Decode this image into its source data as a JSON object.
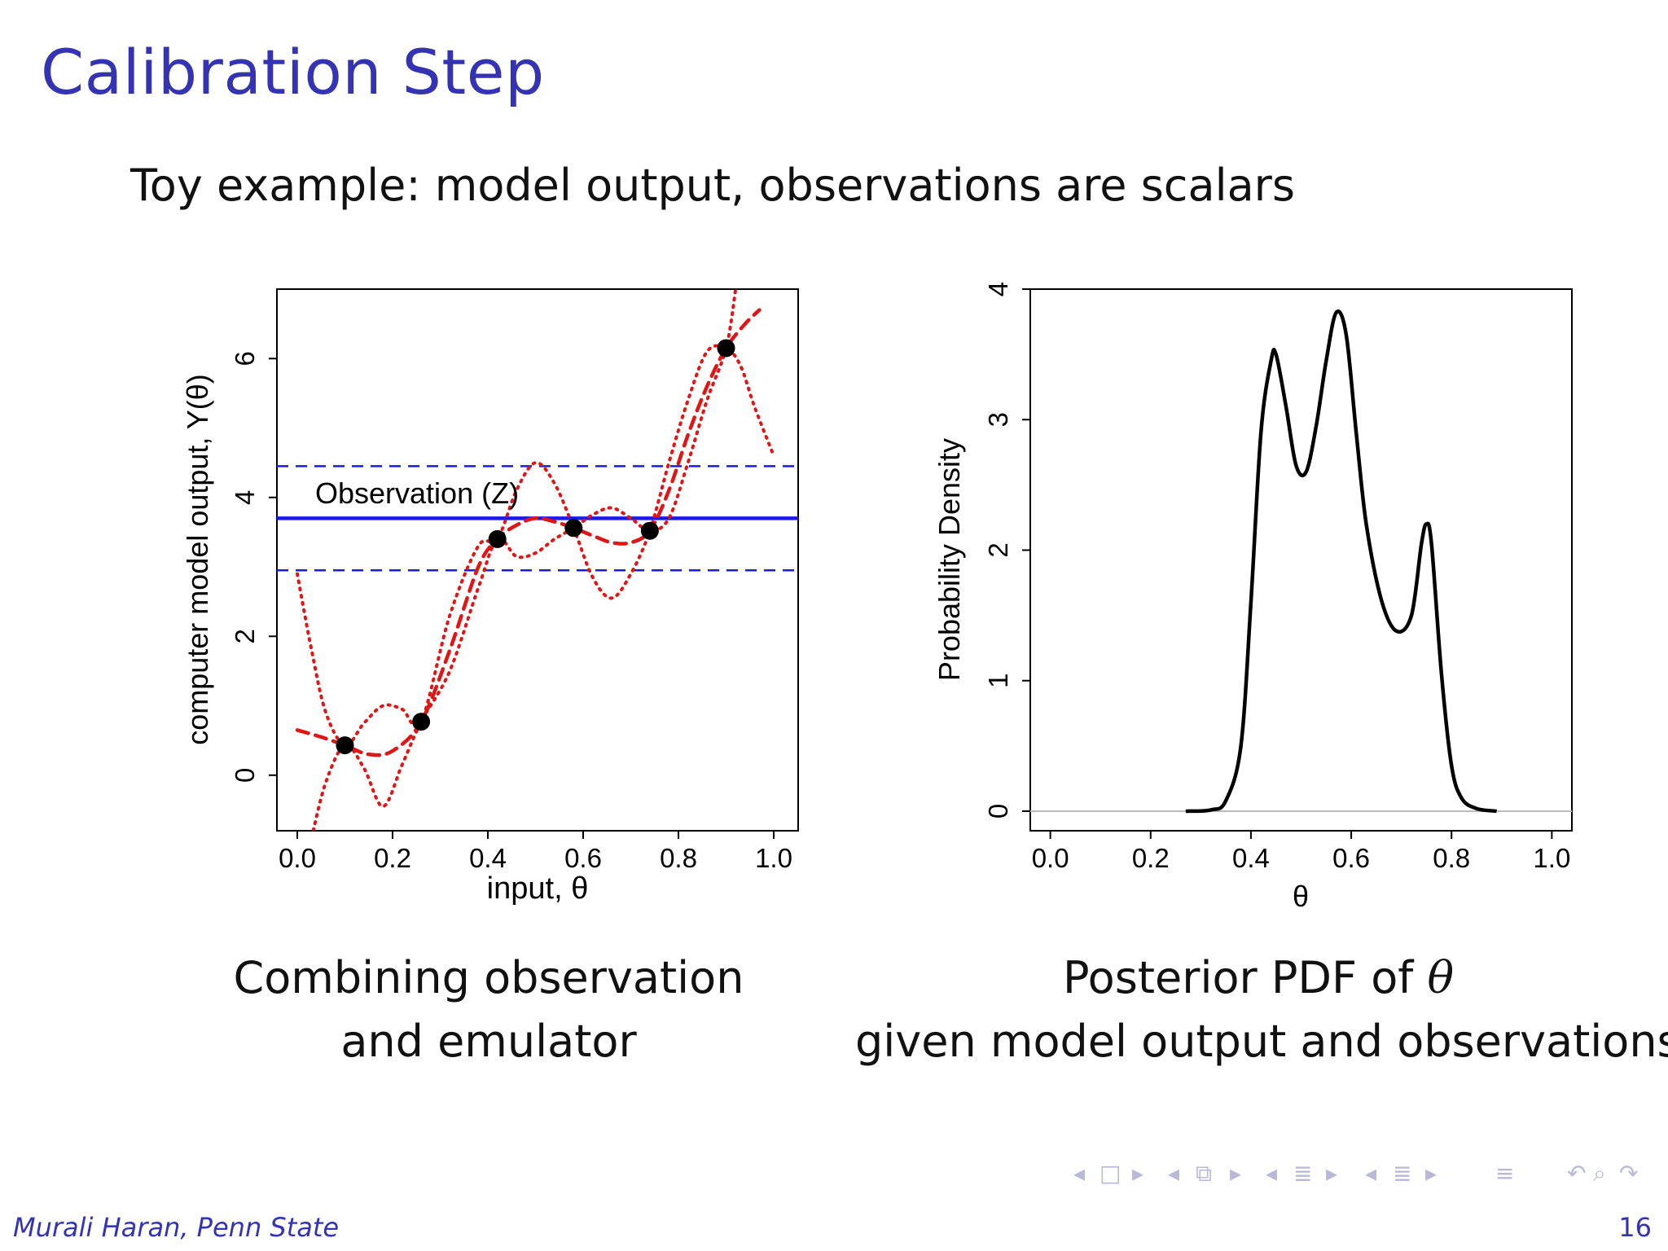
{
  "slide": {
    "title": "Calibration Step",
    "subtitle": "Toy example: model output, observations are scalars",
    "footer_author": "Murali Haran, Penn State",
    "page_number": "16"
  },
  "captions": {
    "left_line1": "Combining observation",
    "left_line2": "and emulator",
    "right_line1_prefix": "Posterior PDF of ",
    "right_line1_symbol": "θ",
    "right_line2": "given model output and observations"
  },
  "nav_icons": [
    "nav-left-arrow-icon",
    "frame-icon",
    "nav-right-arrow-icon",
    "subsection-icon",
    "section-icon",
    "align-icon",
    "search-icon",
    "undo-icon"
  ],
  "colors": {
    "title": "#3333b3",
    "emulator": "#e01515",
    "observation": "#1a1ae6",
    "density": "#000000"
  },
  "chart_data": [
    {
      "type": "line",
      "title": "",
      "xlabel": "input, θ",
      "ylabel": "computer model output,  Y(θ)",
      "xlim": [
        0,
        1
      ],
      "ylim": [
        -0.8,
        7
      ],
      "xticks": [
        "0.0",
        "0.2",
        "0.4",
        "0.6",
        "0.8",
        "1.0"
      ],
      "yticks": [
        "0",
        "2",
        "4",
        "6"
      ],
      "annotation": "Observation (Z)",
      "observation": {
        "value": 3.7,
        "lower": 2.95,
        "upper": 4.45
      },
      "design_points": {
        "x": [
          0.1,
          0.26,
          0.42,
          0.58,
          0.74,
          0.9
        ],
        "y": [
          0.43,
          0.77,
          3.4,
          3.56,
          3.52,
          6.15
        ]
      },
      "series": [
        {
          "style": "dashed-mean",
          "x": [
            0.0,
            0.05,
            0.1,
            0.15,
            0.2,
            0.26,
            0.32,
            0.38,
            0.42,
            0.46,
            0.5,
            0.54,
            0.58,
            0.62,
            0.66,
            0.7,
            0.74,
            0.78,
            0.82,
            0.86,
            0.9,
            0.94,
            0.97
          ],
          "y": [
            0.65,
            0.55,
            0.43,
            0.3,
            0.35,
            0.77,
            1.8,
            3.0,
            3.4,
            3.6,
            3.7,
            3.65,
            3.56,
            3.45,
            3.35,
            3.35,
            3.52,
            4.1,
            4.9,
            5.6,
            6.15,
            6.5,
            6.7
          ]
        },
        {
          "style": "dotted-band",
          "x": [
            0.0,
            0.03,
            0.06,
            0.1,
            0.14,
            0.18,
            0.22,
            0.26,
            0.32,
            0.38,
            0.42,
            0.46,
            0.5,
            0.54,
            0.58,
            0.62,
            0.66,
            0.7,
            0.74,
            0.78,
            0.82,
            0.86,
            0.9,
            0.93,
            0.96,
            1.0
          ],
          "y": [
            2.9,
            1.8,
            0.9,
            0.43,
            0.75,
            1.0,
            0.95,
            0.77,
            2.3,
            3.3,
            3.4,
            4.1,
            4.5,
            4.2,
            3.56,
            2.85,
            2.55,
            2.9,
            3.52,
            4.5,
            5.4,
            6.1,
            6.15,
            5.9,
            5.3,
            4.6
          ]
        },
        {
          "style": "dotted-band",
          "x": [
            0.03,
            0.06,
            0.1,
            0.14,
            0.18,
            0.22,
            0.26,
            0.32,
            0.38,
            0.42,
            0.46,
            0.5,
            0.54,
            0.58,
            0.62,
            0.66,
            0.7,
            0.74,
            0.78,
            0.82,
            0.86,
            0.9,
            0.92
          ],
          "y": [
            -0.9,
            -0.1,
            0.43,
            0.1,
            -0.45,
            0.15,
            0.77,
            1.5,
            2.7,
            3.4,
            3.15,
            3.2,
            3.4,
            3.56,
            3.75,
            3.85,
            3.7,
            3.52,
            3.7,
            4.5,
            5.4,
            6.15,
            7.0
          ]
        }
      ]
    },
    {
      "type": "line",
      "title": "",
      "xlabel": "θ",
      "ylabel": "Probability Density",
      "xlim": [
        -0.04,
        1.04
      ],
      "ylim": [
        -0.15,
        4.0
      ],
      "xticks": [
        "0.0",
        "0.2",
        "0.4",
        "0.6",
        "0.8",
        "1.0"
      ],
      "yticks": [
        "0",
        "1",
        "2",
        "3",
        "4"
      ],
      "series": [
        {
          "x": [
            0.27,
            0.32,
            0.35,
            0.38,
            0.4,
            0.42,
            0.44,
            0.45,
            0.47,
            0.49,
            0.51,
            0.53,
            0.55,
            0.57,
            0.59,
            0.61,
            0.63,
            0.66,
            0.69,
            0.72,
            0.74,
            0.75,
            0.76,
            0.78,
            0.8,
            0.82,
            0.85,
            0.89
          ],
          "y": [
            0.0,
            0.01,
            0.08,
            0.5,
            1.6,
            2.9,
            3.45,
            3.5,
            3.1,
            2.65,
            2.6,
            2.95,
            3.45,
            3.82,
            3.65,
            2.9,
            2.2,
            1.62,
            1.38,
            1.5,
            2.05,
            2.2,
            2.05,
            1.05,
            0.35,
            0.1,
            0.02,
            0.0
          ]
        }
      ]
    }
  ]
}
